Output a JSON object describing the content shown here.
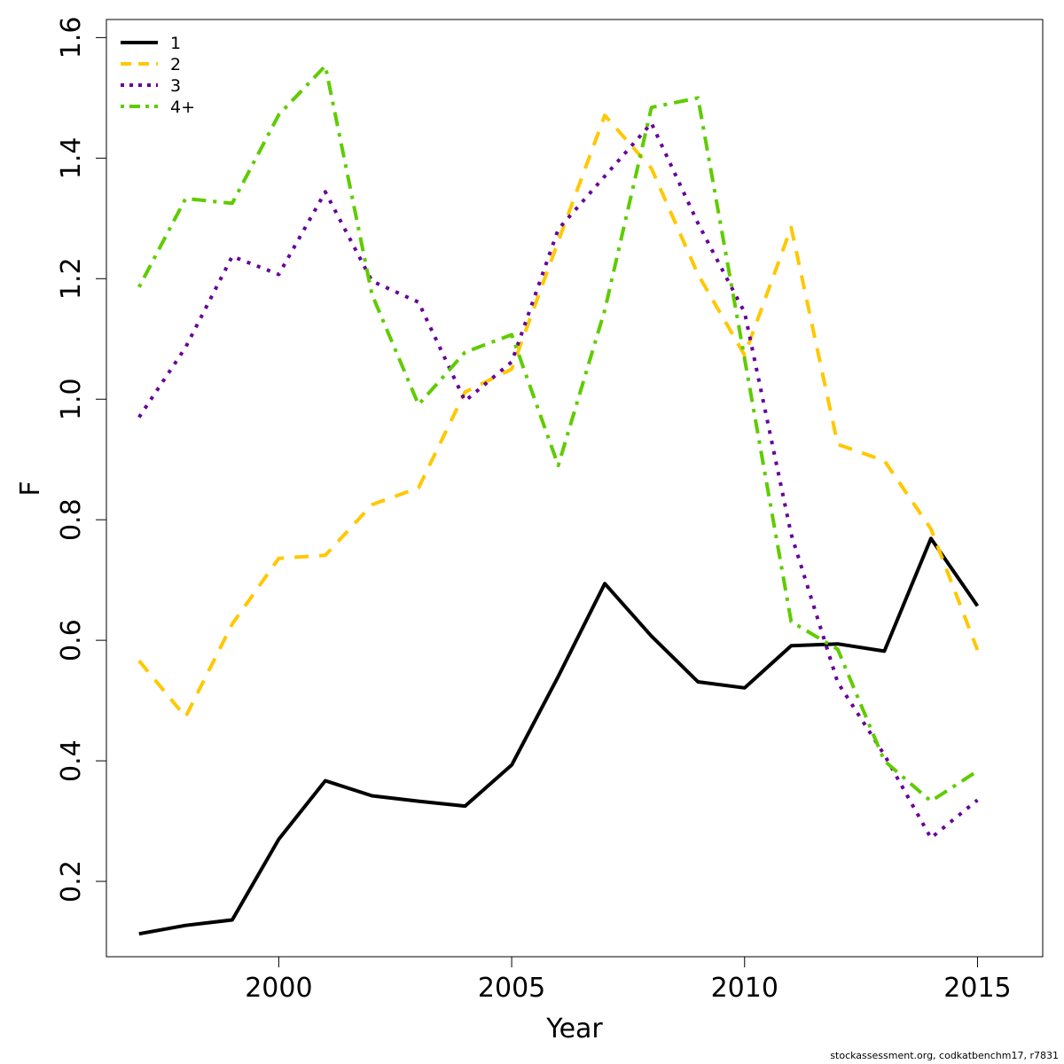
{
  "chart_data": {
    "type": "line",
    "title": "",
    "xlabel": "Year",
    "ylabel": "F",
    "xlim": [
      1996.3,
      2016.4
    ],
    "ylim": [
      0.075,
      1.63
    ],
    "xticks": [
      2000,
      2005,
      2010,
      2015
    ],
    "yticks": [
      0.2,
      0.4,
      0.6,
      0.8,
      1.0,
      1.2,
      1.4,
      1.6
    ],
    "ytick_labels": [
      "0.2",
      "0.4",
      "0.6",
      "0.8",
      "1.0",
      "1.2",
      "1.4",
      "1.6"
    ],
    "grid": false,
    "legend_position": "top-left",
    "x": [
      1997,
      1998,
      1999,
      2000,
      2001,
      2002,
      2003,
      2004,
      2005,
      2006,
      2007,
      2008,
      2009,
      2010,
      2011,
      2012,
      2013,
      2014,
      2015
    ],
    "series": [
      {
        "name": "1",
        "color": "#000000",
        "dash": "solid",
        "values": [
          0.113,
          0.127,
          0.136,
          0.27,
          0.367,
          0.342,
          0.333,
          0.325,
          0.393,
          0.54,
          0.694,
          0.607,
          0.531,
          0.521,
          0.591,
          0.594,
          0.582,
          0.769,
          0.657
        ]
      },
      {
        "name": "2",
        "color": "#FFC800",
        "dash": "dashed",
        "values": [
          0.566,
          0.473,
          0.627,
          0.736,
          0.741,
          0.825,
          0.853,
          1.012,
          1.05,
          1.262,
          1.471,
          1.383,
          1.207,
          1.073,
          1.285,
          0.925,
          0.898,
          0.785,
          0.584
        ]
      },
      {
        "name": "3",
        "color": "#660099",
        "dash": "dotted",
        "values": [
          0.97,
          1.086,
          1.237,
          1.207,
          1.344,
          1.196,
          1.161,
          0.997,
          1.062,
          1.282,
          1.37,
          1.458,
          1.292,
          1.144,
          0.776,
          0.53,
          0.41,
          0.272,
          0.335
        ]
      },
      {
        "name": "4+",
        "color": "#5FCC00",
        "dash": "dotdash",
        "values": [
          1.186,
          1.333,
          1.325,
          1.472,
          1.553,
          1.174,
          0.991,
          1.078,
          1.107,
          0.89,
          1.148,
          1.484,
          1.5,
          1.067,
          0.631,
          0.585,
          0.4,
          0.333,
          0.383
        ]
      }
    ]
  },
  "footer": "stockassessment.org, codkatbenchm17, r7831"
}
